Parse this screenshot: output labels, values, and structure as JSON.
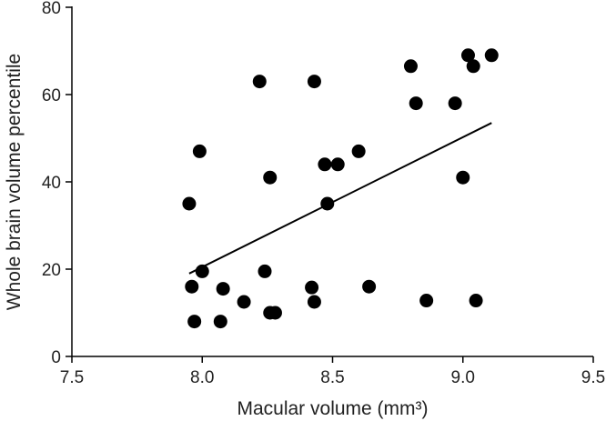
{
  "chart_data": {
    "type": "scatter",
    "title": "",
    "xlabel": "Macular volume (mm³)",
    "ylabel": "Whole brain volume percentile",
    "xlim": [
      7.5,
      9.5
    ],
    "ylim": [
      0,
      80
    ],
    "x_ticks": [
      "7.5",
      "8.0",
      "8.5",
      "9.0",
      "9.5"
    ],
    "y_ticks": [
      "0",
      "20",
      "40",
      "60",
      "80"
    ],
    "grid": false,
    "legend": "none",
    "point_color": "#000000",
    "line_color": "#000000",
    "series": [
      {
        "points": [
          {
            "x": 7.95,
            "y": 35
          },
          {
            "x": 7.96,
            "y": 16
          },
          {
            "x": 7.97,
            "y": 8
          },
          {
            "x": 7.99,
            "y": 47
          },
          {
            "x": 8.0,
            "y": 19.5
          },
          {
            "x": 8.07,
            "y": 8
          },
          {
            "x": 8.08,
            "y": 15.5
          },
          {
            "x": 8.16,
            "y": 12.5
          },
          {
            "x": 8.22,
            "y": 63
          },
          {
            "x": 8.24,
            "y": 19.5
          },
          {
            "x": 8.26,
            "y": 41
          },
          {
            "x": 8.26,
            "y": 10
          },
          {
            "x": 8.28,
            "y": 10
          },
          {
            "x": 8.42,
            "y": 15.8
          },
          {
            "x": 8.43,
            "y": 12.5
          },
          {
            "x": 8.43,
            "y": 63
          },
          {
            "x": 8.47,
            "y": 44
          },
          {
            "x": 8.48,
            "y": 35
          },
          {
            "x": 8.52,
            "y": 44
          },
          {
            "x": 8.6,
            "y": 47
          },
          {
            "x": 8.64,
            "y": 16
          },
          {
            "x": 8.8,
            "y": 66.5
          },
          {
            "x": 8.82,
            "y": 58
          },
          {
            "x": 8.86,
            "y": 12.8
          },
          {
            "x": 8.97,
            "y": 58
          },
          {
            "x": 9.0,
            "y": 41
          },
          {
            "x": 9.02,
            "y": 69
          },
          {
            "x": 9.04,
            "y": 66.5
          },
          {
            "x": 9.05,
            "y": 12.8
          },
          {
            "x": 9.11,
            "y": 69
          }
        ]
      }
    ],
    "trendline": {
      "x": [
        7.95,
        9.11
      ],
      "y": [
        19,
        53.5
      ]
    }
  }
}
